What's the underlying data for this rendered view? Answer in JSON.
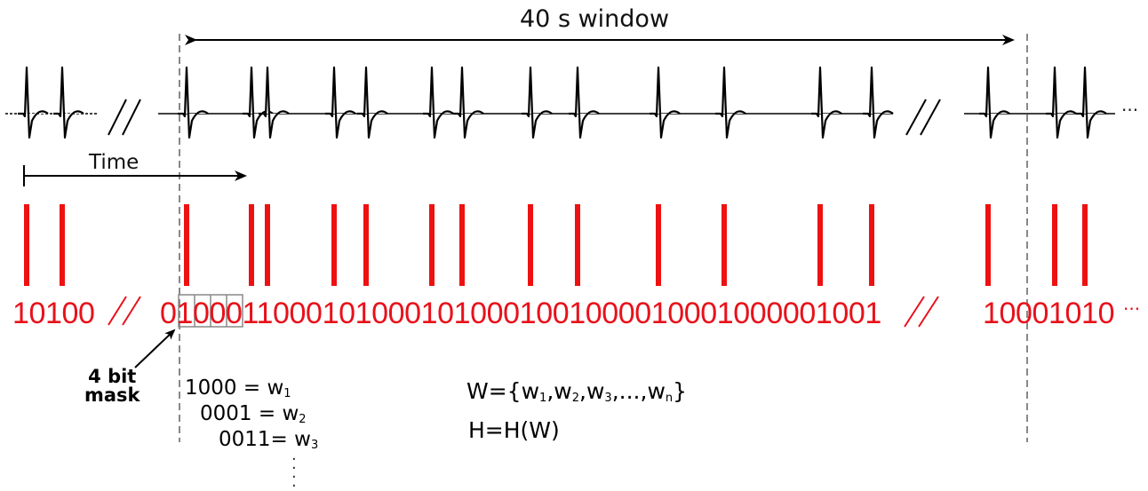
{
  "title": "40 s window",
  "time_label": "Time",
  "bit_strings": {
    "left": "10100",
    "middle": "01000110001010001010001001000010001000001001",
    "right": "10001010",
    "trailing_dots": "···"
  },
  "mask_label_line1": "4 bit",
  "mask_label_line2": "mask",
  "words": [
    {
      "bits": "1000",
      "symbol": "w",
      "index": "1"
    },
    {
      "bits": "0001",
      "symbol": "w",
      "index": "2"
    },
    {
      "bits": "0011",
      "symbol": "w",
      "index": "3"
    }
  ],
  "set_expression": {
    "prefix": "W={",
    "items": [
      {
        "symbol": "w",
        "index": "1"
      },
      {
        "symbol": "w",
        "index": "2"
      },
      {
        "symbol": "w",
        "index": "3"
      },
      {
        "symbol": "...",
        "index": ""
      },
      {
        "symbol": "w",
        "index": "n"
      }
    ],
    "suffix": "}"
  },
  "entropy_expression": "H=H(W)",
  "ecg_trailing_dots": "···",
  "colors": {
    "spike": "#ee1111",
    "bits": "#e8111a",
    "ecg": "#000000",
    "window_line": "#888888"
  }
}
